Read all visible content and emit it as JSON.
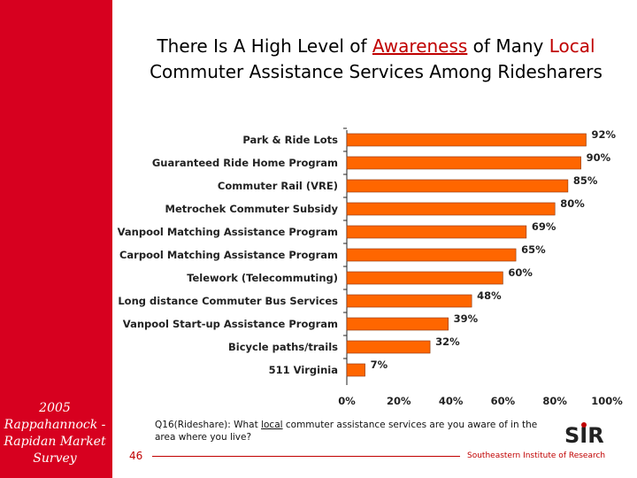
{
  "sidebar": {
    "survey_label": "2005 Rappahannock - Rapidan Market Survey"
  },
  "title": {
    "line1_before": "There Is A High Level of ",
    "line1_highlight": "Awareness",
    "line1_mid": " of Many ",
    "line1_highlight2": "Local",
    "line2": "Commuter Assistance Services Among Ridesharers"
  },
  "chart_data": {
    "type": "bar",
    "orientation": "horizontal",
    "categories": [
      "Park & Ride Lots",
      "Guaranteed Ride Home Program",
      "Commuter Rail (VRE)",
      "Metrochek Commuter Subsidy",
      "Vanpool Matching Assistance Program",
      "Carpool Matching Assistance Program",
      "Telework (Telecommuting)",
      "Long distance Commuter Bus Services",
      "Vanpool Start-up Assistance Program",
      "Bicycle paths/trails",
      "511 Virginia"
    ],
    "values": [
      92,
      90,
      85,
      80,
      69,
      65,
      60,
      48,
      39,
      32,
      7
    ],
    "value_labels": [
      "92%",
      "90%",
      "85%",
      "80%",
      "69%",
      "65%",
      "60%",
      "48%",
      "39%",
      "32%",
      "7%"
    ],
    "xlim": [
      0,
      100
    ],
    "xticks": [
      0,
      20,
      40,
      60,
      80,
      100
    ],
    "xtick_labels": [
      "0%",
      "20%",
      "40%",
      "60%",
      "80%",
      "100%"
    ],
    "bar_color": "#ff6600",
    "grid": false
  },
  "question": {
    "prefix": "Q16(Rideshare): What ",
    "underlined": "local",
    "suffix": " commuter assistance services are you aware of in the area where you live?"
  },
  "footer": {
    "page_number": "46",
    "org_name": "Southeastern Institute of Research",
    "logo_text": "SIR",
    "accent_color": "#c00000"
  }
}
